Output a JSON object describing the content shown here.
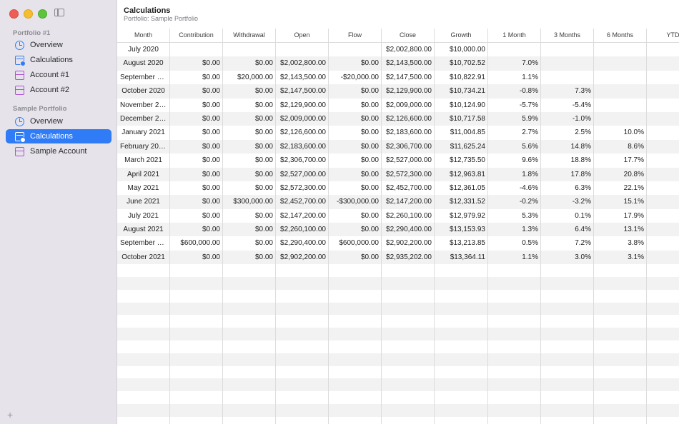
{
  "sidebar": {
    "sections": [
      {
        "title": "Portfolio #1",
        "items": [
          {
            "label": "Overview",
            "icon": "overview-icon"
          },
          {
            "label": "Calculations",
            "icon": "calculations-icon"
          },
          {
            "label": "Account #1",
            "icon": "account-icon"
          },
          {
            "label": "Account #2",
            "icon": "account-icon"
          }
        ]
      },
      {
        "title": "Sample Portfolio",
        "items": [
          {
            "label": "Overview",
            "icon": "overview-icon"
          },
          {
            "label": "Calculations",
            "icon": "calculations-icon",
            "selected": true
          },
          {
            "label": "Sample Account",
            "icon": "account-icon"
          }
        ]
      }
    ],
    "add_label": "+"
  },
  "header": {
    "title": "Calculations",
    "subtitle": "Portfolio: Sample Portfolio"
  },
  "table": {
    "columns": [
      "Month",
      "Contribution",
      "Withdrawal",
      "Open",
      "Flow",
      "Close",
      "Growth",
      "1 Month",
      "3 Months",
      "6 Months",
      "YTD"
    ],
    "rows": [
      [
        "July 2020",
        "",
        "",
        "",
        "",
        "$2,002,800.00",
        "$10,000.00",
        "",
        "",
        "",
        ""
      ],
      [
        "August 2020",
        "$0.00",
        "$0.00",
        "$2,002,800.00",
        "$0.00",
        "$2,143,500.00",
        "$10,702.52",
        "7.0%",
        "",
        "",
        ""
      ],
      [
        "September 2020",
        "$0.00",
        "$20,000.00",
        "$2,143,500.00",
        "-$20,000.00",
        "$2,147,500.00",
        "$10,822.91",
        "1.1%",
        "",
        "",
        ""
      ],
      [
        "October 2020",
        "$0.00",
        "$0.00",
        "$2,147,500.00",
        "$0.00",
        "$2,129,900.00",
        "$10,734.21",
        "-0.8%",
        "7.3%",
        "",
        ""
      ],
      [
        "November 2020",
        "$0.00",
        "$0.00",
        "$2,129,900.00",
        "$0.00",
        "$2,009,000.00",
        "$10,124.90",
        "-5.7%",
        "-5.4%",
        "",
        ""
      ],
      [
        "December 2020",
        "$0.00",
        "$0.00",
        "$2,009,000.00",
        "$0.00",
        "$2,126,600.00",
        "$10,717.58",
        "5.9%",
        "-1.0%",
        "",
        ""
      ],
      [
        "January 2021",
        "$0.00",
        "$0.00",
        "$2,126,600.00",
        "$0.00",
        "$2,183,600.00",
        "$11,004.85",
        "2.7%",
        "2.5%",
        "10.0%",
        ""
      ],
      [
        "February 2021",
        "$0.00",
        "$0.00",
        "$2,183,600.00",
        "$0.00",
        "$2,306,700.00",
        "$11,625.24",
        "5.6%",
        "14.8%",
        "8.6%",
        ""
      ],
      [
        "March 2021",
        "$0.00",
        "$0.00",
        "$2,306,700.00",
        "$0.00",
        "$2,527,000.00",
        "$12,735.50",
        "9.6%",
        "18.8%",
        "17.7%",
        ""
      ],
      [
        "April 2021",
        "$0.00",
        "$0.00",
        "$2,527,000.00",
        "$0.00",
        "$2,572,300.00",
        "$12,963.81",
        "1.8%",
        "17.8%",
        "20.8%",
        ""
      ],
      [
        "May 2021",
        "$0.00",
        "$0.00",
        "$2,572,300.00",
        "$0.00",
        "$2,452,700.00",
        "$12,361.05",
        "-4.6%",
        "6.3%",
        "22.1%",
        ""
      ],
      [
        "June 2021",
        "$0.00",
        "$300,000.00",
        "$2,452,700.00",
        "-$300,000.00",
        "$2,147,200.00",
        "$12,331.52",
        "-0.2%",
        "-3.2%",
        "15.1%",
        ""
      ],
      [
        "July 2021",
        "$0.00",
        "$0.00",
        "$2,147,200.00",
        "$0.00",
        "$2,260,100.00",
        "$12,979.92",
        "5.3%",
        "0.1%",
        "17.9%",
        ""
      ],
      [
        "August 2021",
        "$0.00",
        "$0.00",
        "$2,260,100.00",
        "$0.00",
        "$2,290,400.00",
        "$13,153.93",
        "1.3%",
        "6.4%",
        "13.1%",
        ""
      ],
      [
        "September 2021",
        "$600,000.00",
        "$0.00",
        "$2,290,400.00",
        "$600,000.00",
        "$2,902,200.00",
        "$13,213.85",
        "0.5%",
        "7.2%",
        "3.8%",
        ""
      ],
      [
        "October 2021",
        "$0.00",
        "$0.00",
        "$2,902,200.00",
        "$0.00",
        "$2,935,202.00",
        "$13,364.11",
        "1.1%",
        "3.0%",
        "3.1%",
        ""
      ]
    ]
  }
}
